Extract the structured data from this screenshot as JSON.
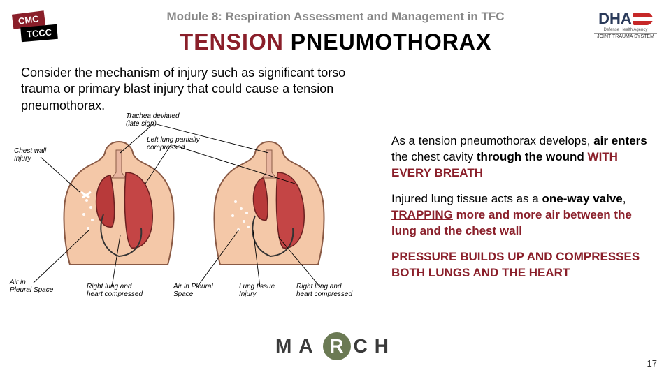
{
  "module_header": "Module 8: Respiration Assessment and Management in TFC",
  "title": {
    "tension": "TENSION",
    "pneumo": " PNEUMOTHORAX"
  },
  "intro": "Consider the mechanism of injury such as significant torso trauma or primary blast injury that could cause a tension pneumothorax.",
  "logos": {
    "cmc": "CMC",
    "tccc": "TCCC",
    "dha": "DHA",
    "dha_sub": "Defense Health Agency",
    "dha_sub2": "JOINT TRAUMA SYSTEM"
  },
  "diagram": {
    "labels": {
      "chest_wall": "Chest wall\nInjury",
      "trachea": "Trachea deviated\n(late sign)",
      "left_lung": "Left lung partially\ncompressed",
      "air_pleural_1": "Air in\nPleural Space",
      "right_lung_1": "Right lung and\nheart compressed",
      "air_pleural_2": "Air in Pleural\nSpace",
      "lung_tissue": "Lung tissue\nInjury",
      "right_lung_2": "Right lung and\nheart compressed"
    }
  },
  "right_para1_a": "As a tension pneumothorax develops, ",
  "right_para1_b": "air enters",
  "right_para1_c": " the chest cavity ",
  "right_para1_d": "through the wound ",
  "right_para1_e": "WITH EVERY BREATH",
  "right_para2_a": "Injured lung tissue acts as a ",
  "right_para2_b": "one-way valve",
  "right_para2_c": ", ",
  "right_para2_d": "TRAPPING",
  "right_para2_e": " more and more air between the lung and the chest wall",
  "right_para3": "PRESSURE BUILDS UP AND COMPRESSES BOTH LUNGS AND THE HEART",
  "march": {
    "m": "M",
    "a": "A",
    "r": "R",
    "c": "C",
    "h": "H"
  },
  "page": "17",
  "colors": {
    "accent": "#8a1f2a",
    "skin": "#f4c8a8",
    "lung": "#b83a3a",
    "march_circle": "#6b7a54"
  }
}
